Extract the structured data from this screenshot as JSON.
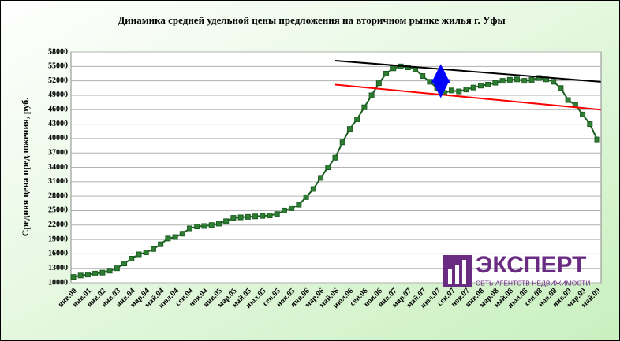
{
  "chart_data": {
    "type": "line",
    "title": "Динамика средней удельной цены предложения на вторичном рынке жилья г. Уфы",
    "y_label": "Средняя цена предложения, руб.",
    "categories": [
      "янв.00",
      null,
      "янв.01",
      null,
      "янв.02",
      null,
      "янв.03",
      null,
      "янв.04",
      null,
      "мар.04",
      null,
      "май.04",
      null,
      "июл.04",
      null,
      "сен.04",
      null,
      "ноя.04",
      null,
      "янв.05",
      null,
      "мар.05",
      null,
      "май.05",
      null,
      "июл.05",
      null,
      "сен.05",
      null,
      "ноя.05",
      null,
      "янв.06",
      null,
      "мар.06",
      null,
      "май.06",
      null,
      "июл.06",
      null,
      "сен.06",
      null,
      "ноя.06",
      null,
      "янв.07",
      null,
      "мар.07",
      null,
      "май.07",
      null,
      "июл.07",
      null,
      "сен.07",
      null,
      "ноя.07",
      null,
      "янв.08",
      null,
      "мар.08",
      null,
      "май.08",
      null,
      "июл.08",
      null,
      "сен.08",
      null,
      "ноя.08",
      null,
      "янв.09",
      null,
      "мар.09",
      null,
      "май.09"
    ],
    "series": [
      {
        "name": "Средняя цена",
        "color": "#1b5e20",
        "marker_color": "#2e7d32",
        "values": [
          11200,
          11500,
          11700,
          11900,
          12100,
          12500,
          13000,
          14000,
          15000,
          15900,
          16300,
          17000,
          18000,
          19200,
          19500,
          20200,
          21300,
          21700,
          21800,
          22000,
          22300,
          22800,
          23500,
          23600,
          23700,
          23800,
          23900,
          24000,
          24300,
          25000,
          25500,
          26200,
          27800,
          29500,
          31800,
          34000,
          36000,
          39200,
          42000,
          44000,
          46500,
          49000,
          51500,
          53500,
          54600,
          55000,
          54800,
          54400,
          53000,
          51800,
          50500,
          49500,
          50000,
          49800,
          50200,
          50600,
          51000,
          51200,
          51600,
          52000,
          52200,
          52300,
          52000,
          52200,
          52600,
          52300,
          51800,
          50500,
          48000,
          47000,
          45000,
          43000,
          39800
        ]
      }
    ],
    "trend_lines": [
      {
        "color": "#000000",
        "x": [
          36,
          72.5
        ],
        "values": [
          56200,
          51800
        ]
      },
      {
        "color": "#ff0000",
        "x": [
          36,
          72.5
        ],
        "values": [
          51200,
          46000
        ]
      }
    ],
    "arrow": {
      "color": "#0000ff",
      "x": 50.5,
      "values": [
        54500,
        49400
      ]
    },
    "ylim": [
      10000,
      58000
    ],
    "yticks": [
      10000,
      13000,
      16000,
      19000,
      22000,
      25000,
      28000,
      31000,
      34000,
      37000,
      40000,
      43000,
      46000,
      49000,
      52000,
      55000,
      58000
    ],
    "grid": true
  },
  "logo": {
    "name": "ЭКСПЕРТ",
    "tagline": "СЕТЬ АГЕНТСТВ НЕДВИЖИМОСТИ"
  }
}
